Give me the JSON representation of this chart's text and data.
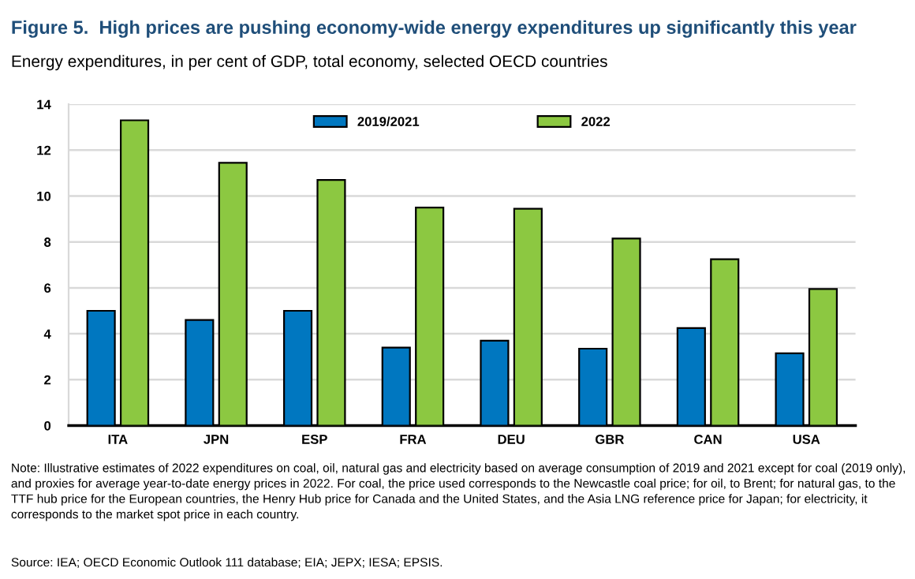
{
  "chart_data": {
    "type": "bar",
    "title": "Figure 5.  High prices are pushing economy-wide energy expenditures up significantly this year",
    "subtitle": "Energy expenditures, in per cent of GDP, total economy, selected OECD countries",
    "categories": [
      "ITA",
      "JPN",
      "ESP",
      "FRA",
      "DEU",
      "GBR",
      "CAN",
      "USA"
    ],
    "series": [
      {
        "name": "2019/2021",
        "color": "#0077c0",
        "values": [
          5.0,
          4.6,
          5.0,
          3.4,
          3.7,
          3.35,
          4.25,
          3.15
        ]
      },
      {
        "name": "2022",
        "color": "#8cc841",
        "values": [
          13.3,
          11.45,
          10.7,
          9.5,
          9.45,
          8.15,
          7.25,
          5.95
        ]
      }
    ],
    "ylim": [
      0,
      14
    ],
    "yticks": [
      0,
      2,
      4,
      6,
      8,
      10,
      12,
      14
    ],
    "grid": "y",
    "legend": "top",
    "annotations": [
      "Note: Illustrative estimates of 2022 expenditures on coal, oil, natural gas and electricity based on average consumption of 2019 and 2021 except for coal (2019 only), and proxies for average year-to-date energy prices in 2022. For coal, the price used corresponds to the Newcastle coal price; for oil, to Brent; for natural gas, to the TTF hub price for the European countries, the Henry Hub price for Canada and the United States, and the Asia LNG reference price for Japan; for electricity, it corresponds to the market spot price in each country.",
      "Source: IEA; OECD Economic Outlook 111 database; EIA; JEPX; IESA; EPSIS."
    ]
  }
}
